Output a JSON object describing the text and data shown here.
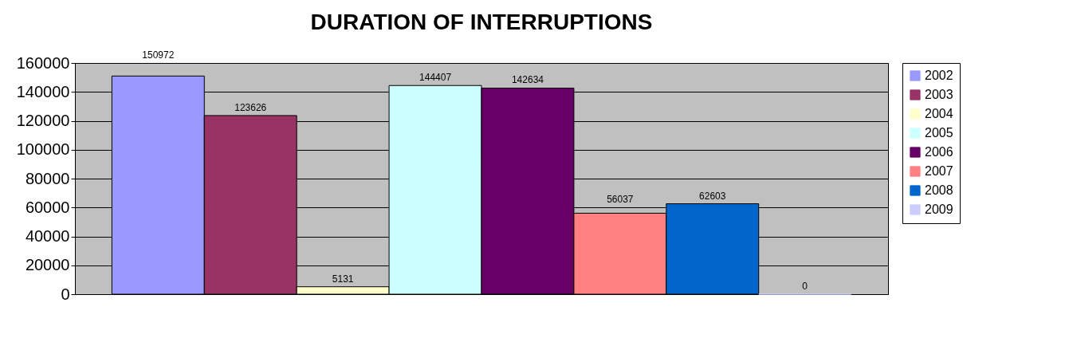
{
  "chart_data": {
    "type": "bar",
    "title": "DURATION OF INTERRUPTIONS",
    "categories": [
      null
    ],
    "series": [
      {
        "name": "2002",
        "color": "#9999ff",
        "values": [
          150972
        ]
      },
      {
        "name": "2003",
        "color": "#993366",
        "values": [
          123626
        ]
      },
      {
        "name": "2004",
        "color": "#ffffcc",
        "values": [
          5131
        ]
      },
      {
        "name": "2005",
        "color": "#ccffff",
        "values": [
          144407
        ]
      },
      {
        "name": "2006",
        "color": "#660066",
        "values": [
          142634
        ]
      },
      {
        "name": "2007",
        "color": "#ff8080",
        "values": [
          56037
        ]
      },
      {
        "name": "2008",
        "color": "#0066cc",
        "values": [
          62603
        ]
      },
      {
        "name": "2009",
        "color": "#ccccff",
        "values": [
          0
        ]
      }
    ],
    "ylim": [
      0,
      160000
    ],
    "yticks": [
      0,
      20000,
      40000,
      60000,
      80000,
      100000,
      120000,
      140000,
      160000
    ],
    "grid": "y",
    "legend": "right",
    "data_labels": true
  }
}
